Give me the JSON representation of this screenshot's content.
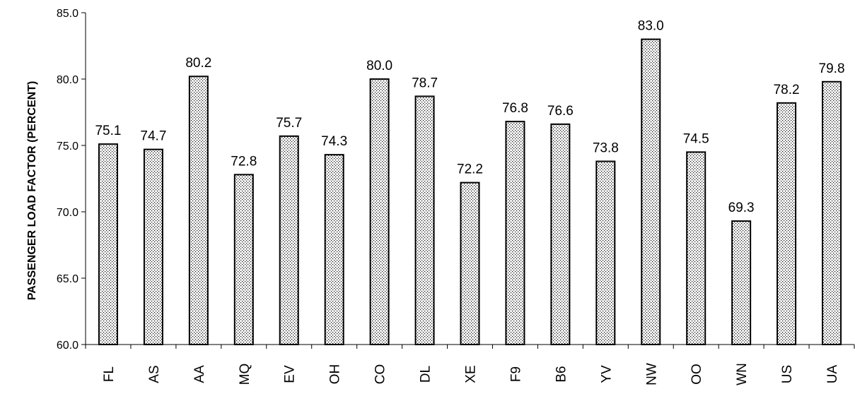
{
  "chart_data": {
    "type": "bar",
    "title": "",
    "xlabel": "",
    "ylabel": "PASSENGER LOAD FACTOR (PERCENT)",
    "ylim": [
      60,
      85
    ],
    "yticks": [
      "60.0",
      "65.0",
      "70.0",
      "75.0",
      "80.0",
      "85.0"
    ],
    "categories": [
      "FL",
      "AS",
      "AA",
      "MQ",
      "EV",
      "OH",
      "CO",
      "DL",
      "XE",
      "F9",
      "B6",
      "YV",
      "NW",
      "OO",
      "WN",
      "US",
      "UA"
    ],
    "values": [
      75.1,
      74.7,
      80.2,
      72.8,
      75.7,
      74.3,
      80.0,
      78.7,
      72.2,
      76.8,
      76.6,
      73.8,
      83.0,
      74.5,
      69.3,
      78.2,
      79.8
    ],
    "value_labels": [
      "75.1",
      "74.7",
      "80.2",
      "72.8",
      "75.7",
      "74.3",
      "80.0",
      "78.7",
      "72.2",
      "76.8",
      "76.6",
      "73.8",
      "83.0",
      "74.5",
      "69.3",
      "78.2",
      "79.8"
    ],
    "grid": false,
    "legend": "none",
    "bar_fill": "dotted pattern",
    "colors": {
      "bar_fill": "#ffffff",
      "bar_dots": "#000000",
      "bar_stroke": "#000000",
      "axis": "#000000"
    }
  }
}
